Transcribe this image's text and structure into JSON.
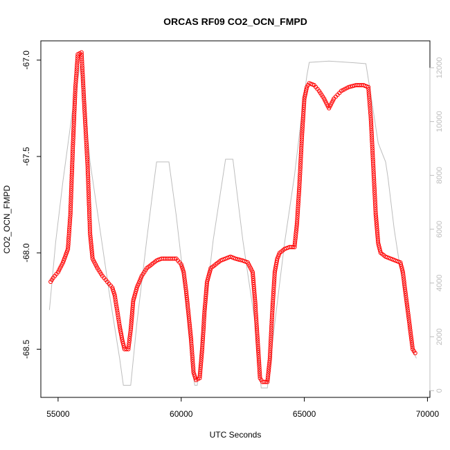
{
  "chart_data": {
    "type": "scatter",
    "title": "ORCAS RF09 CO2_OCN_FMPD",
    "xlabel": "UTC Seconds",
    "ylabel": "CO2_OCN_FMPD",
    "xlim": [
      54300,
      70100
    ],
    "ylim": [
      -68.75,
      -66.9
    ],
    "y2lim": [
      -250,
      13000
    ],
    "x_ticks": [
      55000,
      60000,
      65000,
      70000
    ],
    "y_ticks": [
      -67.0,
      -67.5,
      -68.0,
      -68.5
    ],
    "y_tick_labels": [
      "-67.0",
      "-67.5",
      "-68.0",
      "-68.5"
    ],
    "y2_ticks": [
      0,
      2000,
      4000,
      6000,
      8000,
      10000,
      12000
    ],
    "series": [
      {
        "marker": "open-circle",
        "color": "#ff0000",
        "axis": "left",
        "keypoints": [
          [
            54700,
            -68.15
          ],
          [
            54800,
            -68.13
          ],
          [
            55000,
            -68.1
          ],
          [
            55200,
            -68.05
          ],
          [
            55400,
            -67.98
          ],
          [
            55500,
            -67.8
          ],
          [
            55600,
            -67.45
          ],
          [
            55700,
            -67.15
          ],
          [
            55800,
            -66.97
          ],
          [
            55950,
            -66.96
          ],
          [
            56050,
            -67.2
          ],
          [
            56200,
            -67.55
          ],
          [
            56300,
            -67.9
          ],
          [
            56400,
            -68.03
          ],
          [
            56600,
            -68.08
          ],
          [
            56800,
            -68.12
          ],
          [
            57000,
            -68.15
          ],
          [
            57200,
            -68.18
          ],
          [
            57300,
            -68.22
          ],
          [
            57400,
            -68.3
          ],
          [
            57500,
            -68.38
          ],
          [
            57600,
            -68.45
          ],
          [
            57700,
            -68.5
          ],
          [
            57850,
            -68.5
          ],
          [
            57950,
            -68.4
          ],
          [
            58050,
            -68.25
          ],
          [
            58200,
            -68.18
          ],
          [
            58400,
            -68.12
          ],
          [
            58600,
            -68.08
          ],
          [
            58800,
            -68.06
          ],
          [
            59000,
            -68.04
          ],
          [
            59200,
            -68.03
          ],
          [
            59500,
            -68.03
          ],
          [
            59800,
            -68.03
          ],
          [
            60000,
            -68.06
          ],
          [
            60100,
            -68.1
          ],
          [
            60200,
            -68.2
          ],
          [
            60300,
            -68.32
          ],
          [
            60400,
            -68.45
          ],
          [
            60500,
            -68.62
          ],
          [
            60600,
            -68.66
          ],
          [
            60750,
            -68.65
          ],
          [
            60850,
            -68.5
          ],
          [
            60950,
            -68.3
          ],
          [
            61050,
            -68.15
          ],
          [
            61200,
            -68.08
          ],
          [
            61400,
            -68.06
          ],
          [
            61600,
            -68.04
          ],
          [
            61800,
            -68.03
          ],
          [
            62000,
            -68.02
          ],
          [
            62200,
            -68.03
          ],
          [
            62500,
            -68.04
          ],
          [
            62700,
            -68.05
          ],
          [
            62900,
            -68.1
          ],
          [
            63000,
            -68.25
          ],
          [
            63100,
            -68.45
          ],
          [
            63200,
            -68.65
          ],
          [
            63300,
            -68.67
          ],
          [
            63500,
            -68.67
          ],
          [
            63600,
            -68.55
          ],
          [
            63700,
            -68.3
          ],
          [
            63800,
            -68.1
          ],
          [
            63900,
            -68.03
          ],
          [
            64000,
            -68.0
          ],
          [
            64200,
            -67.98
          ],
          [
            64400,
            -67.97
          ],
          [
            64600,
            -67.97
          ],
          [
            64700,
            -67.85
          ],
          [
            64800,
            -67.65
          ],
          [
            64900,
            -67.4
          ],
          [
            65000,
            -67.2
          ],
          [
            65100,
            -67.14
          ],
          [
            65200,
            -67.12
          ],
          [
            65400,
            -67.13
          ],
          [
            65600,
            -67.16
          ],
          [
            65800,
            -67.2
          ],
          [
            66000,
            -67.25
          ],
          [
            66200,
            -67.2
          ],
          [
            66500,
            -67.16
          ],
          [
            66800,
            -67.14
          ],
          [
            67100,
            -67.13
          ],
          [
            67400,
            -67.13
          ],
          [
            67600,
            -67.14
          ],
          [
            67700,
            -67.3
          ],
          [
            67800,
            -67.55
          ],
          [
            67900,
            -67.8
          ],
          [
            68000,
            -67.95
          ],
          [
            68100,
            -68.0
          ],
          [
            68300,
            -68.02
          ],
          [
            68500,
            -68.03
          ],
          [
            68700,
            -68.04
          ],
          [
            68900,
            -68.05
          ],
          [
            69000,
            -68.1
          ],
          [
            69100,
            -68.2
          ],
          [
            69200,
            -68.3
          ],
          [
            69300,
            -68.4
          ],
          [
            69400,
            -68.5
          ],
          [
            69500,
            -68.52
          ]
        ]
      },
      {
        "marker": "line",
        "color": "#bdbdbd",
        "axis": "right",
        "points": [
          [
            54650,
            3000
          ],
          [
            54900,
            5500
          ],
          [
            55200,
            7800
          ],
          [
            55600,
            10500
          ],
          [
            55900,
            12100
          ],
          [
            56000,
            11500
          ],
          [
            56300,
            8500
          ],
          [
            56700,
            6000
          ],
          [
            57100,
            3500
          ],
          [
            57500,
            1200
          ],
          [
            57650,
            200
          ],
          [
            57950,
            200
          ],
          [
            58200,
            2500
          ],
          [
            58600,
            5600
          ],
          [
            58900,
            7800
          ],
          [
            59000,
            8500
          ],
          [
            59500,
            8500
          ],
          [
            59800,
            6500
          ],
          [
            60200,
            3300
          ],
          [
            60500,
            500
          ],
          [
            60550,
            200
          ],
          [
            60650,
            200
          ],
          [
            60900,
            2500
          ],
          [
            61300,
            5600
          ],
          [
            61800,
            8600
          ],
          [
            62100,
            8600
          ],
          [
            62500,
            5600
          ],
          [
            63000,
            2500
          ],
          [
            63250,
            100
          ],
          [
            63500,
            100
          ],
          [
            63800,
            2500
          ],
          [
            64200,
            5500
          ],
          [
            64600,
            8000
          ],
          [
            64900,
            10300
          ],
          [
            65100,
            11700
          ],
          [
            65200,
            12200
          ],
          [
            66000,
            12250
          ],
          [
            66800,
            12200
          ],
          [
            67500,
            12150
          ],
          [
            67700,
            11000
          ],
          [
            68000,
            9200
          ],
          [
            68300,
            8500
          ],
          [
            68400,
            7900
          ],
          [
            68650,
            6000
          ],
          [
            68900,
            4500
          ],
          [
            69100,
            3500
          ],
          [
            69400,
            1500
          ],
          [
            69550,
            1200
          ]
        ]
      }
    ]
  }
}
